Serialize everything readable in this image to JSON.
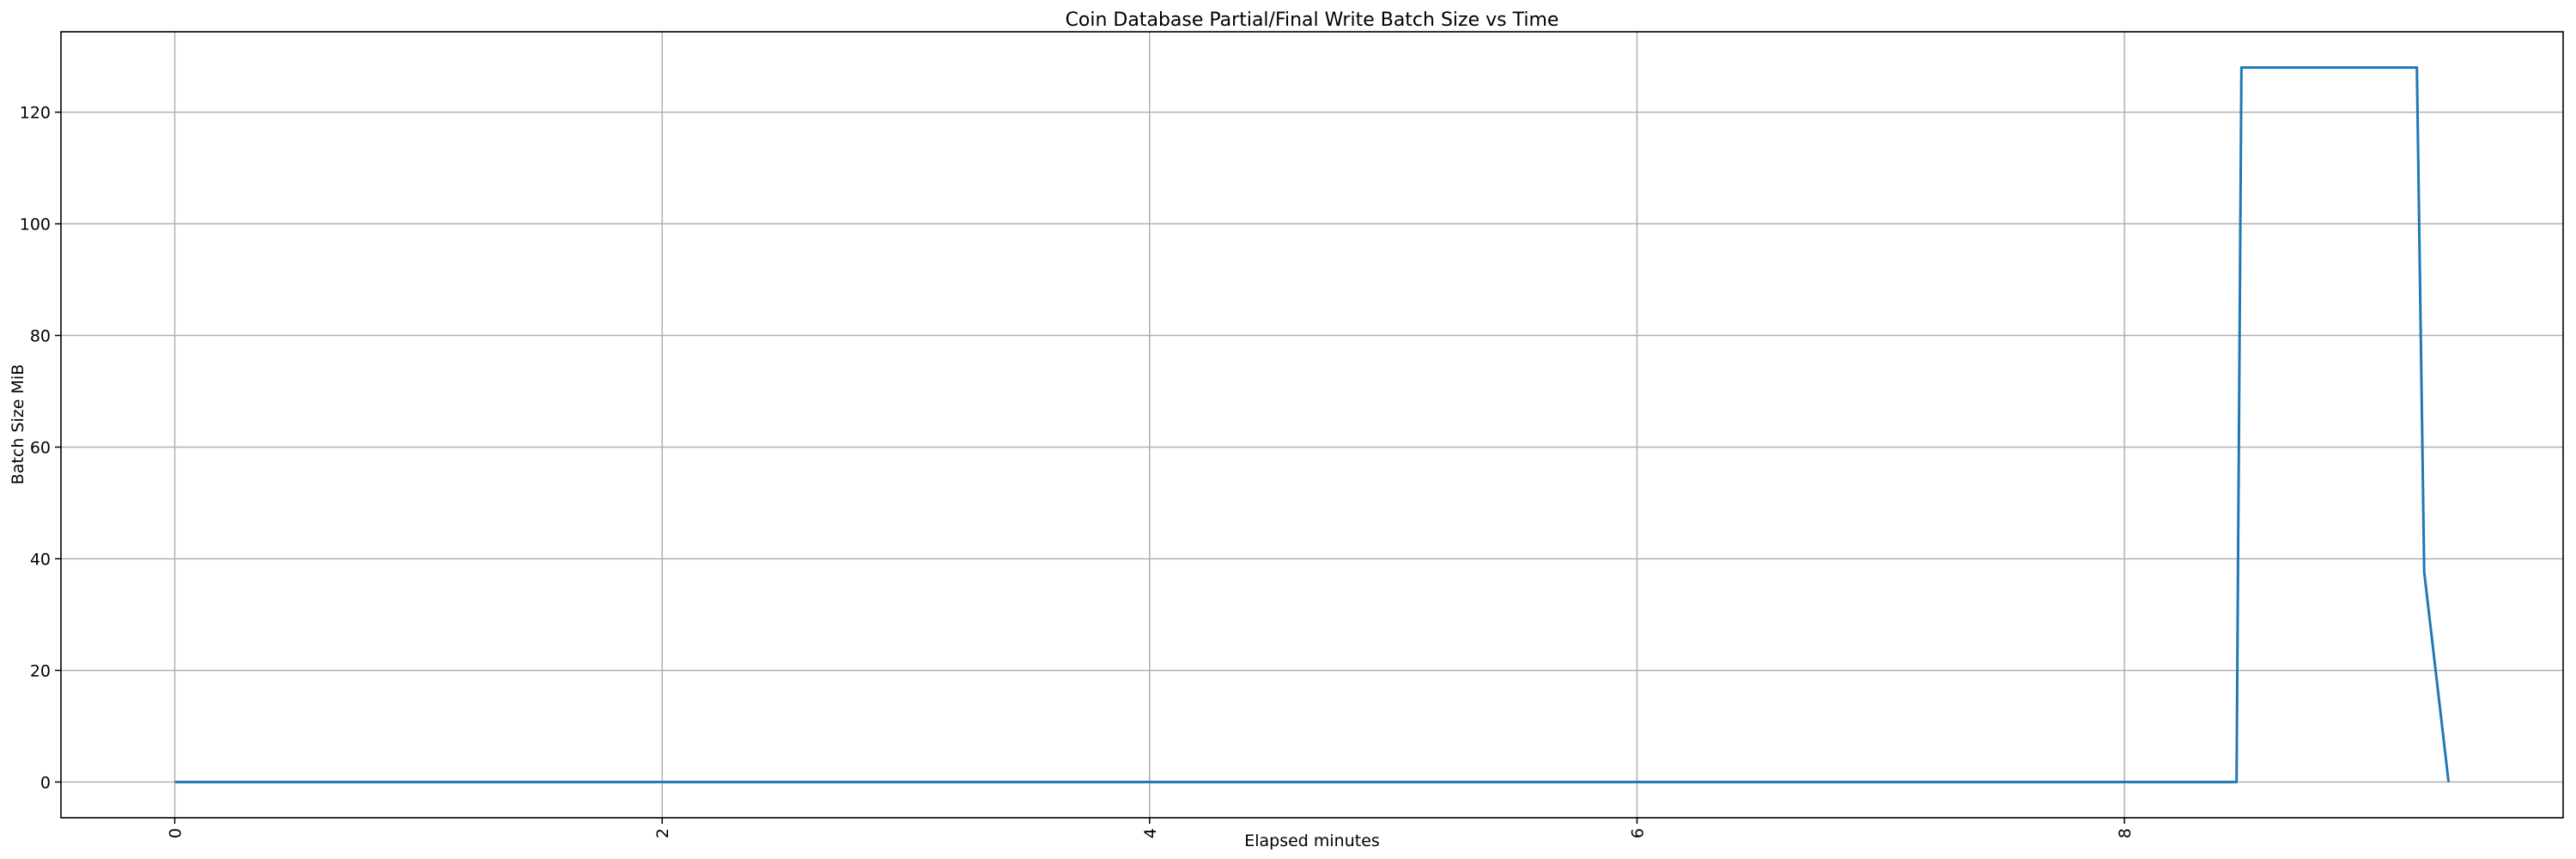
{
  "chart_data": {
    "type": "line",
    "title": "Coin Database Partial/Final Write Batch Size vs Time",
    "xlabel": "Elapsed minutes",
    "ylabel": "Batch Size MiB",
    "xlim": [
      -0.467,
      9.8
    ],
    "ylim": [
      -6.4,
      134.4
    ],
    "xticks": [
      0,
      2,
      4,
      6,
      8
    ],
    "yticks": [
      0,
      20,
      40,
      60,
      80,
      100,
      120
    ],
    "grid": true,
    "x_tick_rotation": 90,
    "series": [
      {
        "color": "#1f77b4",
        "x": [
          0,
          8.46,
          8.48,
          9.2,
          9.23,
          9.33
        ],
        "y": [
          0,
          0,
          128,
          128,
          37.6,
          0
        ]
      }
    ]
  }
}
